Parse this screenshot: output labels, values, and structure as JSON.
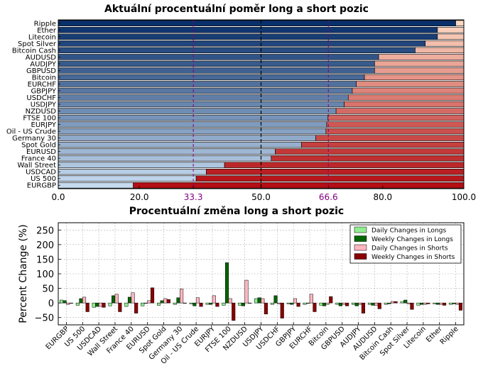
{
  "chart_data": [
    {
      "type": "bar",
      "orientation": "horizontal",
      "stacked": true,
      "title": "Aktuální procentuální poměr long a short pozic",
      "categories": [
        "Ripple",
        "Ether",
        "Litecoin",
        "Spot Silver",
        "Bitcoin Cash",
        "AUDUSD",
        "AUDJPY",
        "GBPUSD",
        "Bitcoin",
        "EURCHF",
        "GBPJPY",
        "USDCHF",
        "USDJPY",
        "NZDUSD",
        "FTSE 100",
        "EURJPY",
        "Oil - US Crude",
        "Germany 30",
        "Spot Gold",
        "EURUSD",
        "France 40",
        "Wall Street",
        "USDCAD",
        "US 500",
        "EURGBP"
      ],
      "series": [
        {
          "values": [
            98.0,
            93.5,
            93.5,
            90.5,
            88.0,
            79.0,
            78.0,
            78.0,
            75.5,
            73.5,
            72.5,
            71.5,
            70.5,
            68.5,
            66.5,
            66.2,
            66.0,
            63.5,
            60.0,
            53.5,
            52.5,
            41.0,
            36.5,
            34.0,
            18.5
          ]
        },
        {
          "values": [
            2.0,
            6.5,
            6.5,
            9.5,
            12.0,
            21.0,
            22.0,
            22.0,
            24.5,
            26.5,
            27.5,
            28.5,
            29.5,
            31.5,
            33.5,
            33.8,
            34.0,
            36.5,
            40.0,
            46.5,
            47.5,
            59.0,
            63.5,
            66.0,
            81.5
          ]
        }
      ],
      "xlim": [
        0,
        100
      ],
      "xticks": [
        "0.0",
        "20.0",
        "33.3",
        "50.0",
        "66.6",
        "80.0",
        "100.0"
      ],
      "grid": true
    },
    {
      "type": "bar",
      "title": "Procentuální změna long a short pozic",
      "ylabel": "Percent Change (%)",
      "ylim": [
        -75,
        275
      ],
      "yticks": [
        "250",
        "200",
        "150",
        "100",
        "50",
        "0",
        "−50"
      ],
      "legend_position": "top-right",
      "categories": [
        "EURGBP",
        "US 500",
        "USDCAD",
        "Wall Street",
        "France 40",
        "EURUSD",
        "Spot Gold",
        "Germany 30",
        "Oil - US Crude",
        "EURJPY",
        "FTSE 100",
        "NZDUSD",
        "USDJPY",
        "USDCHF",
        "GBPJPY",
        "EURCHF",
        "Bitcoin",
        "GBPUSD",
        "AUDJPY",
        "AUDUSD",
        "Bitcoin Cash",
        "Spot Silver",
        "Litecoin",
        "Ether",
        "Ripple"
      ],
      "series": [
        {
          "name": "Daily Changes in Longs",
          "values": [
            10,
            -8,
            -15,
            -10,
            -12,
            -10,
            -8,
            -5,
            -3,
            -5,
            -8,
            -8,
            15,
            -5,
            -3,
            -5,
            -8,
            -5,
            -5,
            -5,
            -5,
            5,
            -8,
            -3,
            -5
          ]
        },
        {
          "name": "Weekly Changes in Longs",
          "values": [
            8,
            15,
            -12,
            25,
            20,
            0,
            8,
            18,
            -10,
            -5,
            138,
            -10,
            18,
            25,
            -5,
            0,
            -10,
            -10,
            -10,
            -8,
            -3,
            10,
            -5,
            -5,
            -3
          ]
        },
        {
          "name": "Daily Changes in Shorts",
          "values": [
            -5,
            20,
            -12,
            30,
            35,
            8,
            15,
            48,
            18,
            25,
            15,
            78,
            15,
            -3,
            15,
            30,
            -5,
            -5,
            -5,
            -8,
            5,
            -3,
            -5,
            -5,
            -5
          ]
        },
        {
          "name": "Weekly Changes in Shorts",
          "values": [
            0,
            -30,
            -15,
            -30,
            -35,
            52,
            12,
            0,
            -12,
            -12,
            -60,
            0,
            -38,
            -52,
            -12,
            -30,
            22,
            -10,
            -35,
            -20,
            5,
            -22,
            -3,
            -8,
            -25
          ]
        }
      ],
      "colors": [
        "#90ee90",
        "#006400",
        "#ffb6c1",
        "#8b0000"
      ],
      "grid": true
    }
  ]
}
